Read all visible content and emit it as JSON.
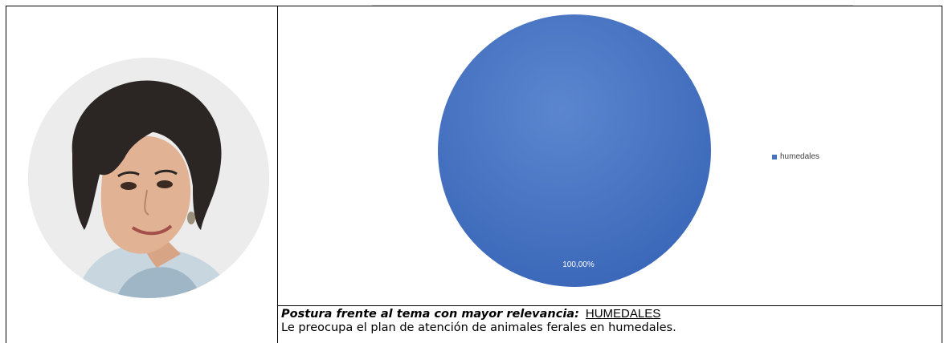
{
  "profile": {
    "photo_icon": "portrait-photo"
  },
  "chart_data": {
    "type": "pie",
    "categories": [
      "humedales"
    ],
    "values": [
      100
    ],
    "data_labels": [
      "100,00%"
    ],
    "legend": [
      "humedales"
    ],
    "legend_position": "right",
    "colors": [
      "#4472c4"
    ]
  },
  "posture": {
    "label": "Postura frente al tema con mayor relevancia:",
    "value": "HUMEDALES",
    "description": "Le preocupa el plan de atención de animales ferales en humedales."
  }
}
